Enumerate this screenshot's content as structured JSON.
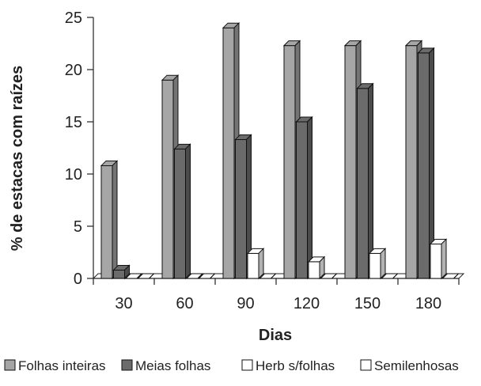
{
  "chart_data": {
    "type": "bar",
    "style": "3d-clustered",
    "title": "",
    "xlabel": "Dias",
    "ylabel": "% de estacas com raízes",
    "ylim": [
      0,
      25
    ],
    "yticks": [
      "0",
      "5",
      "10",
      "15",
      "20",
      "25"
    ],
    "categories": [
      "30",
      "60",
      "90",
      "120",
      "150",
      "180"
    ],
    "grid": false,
    "legend_position": "bottom",
    "series": [
      {
        "name": "Folhas inteiras",
        "color": "#a6a6a6",
        "values": [
          10.8,
          19.0,
          24.0,
          22.3,
          22.3,
          22.3
        ]
      },
      {
        "name": "Meias folhas",
        "color": "#6b6b6b",
        "values": [
          0.8,
          12.4,
          13.3,
          15.0,
          18.2,
          21.6
        ]
      },
      {
        "name": "Herb s/folhas",
        "color": "#ffffff",
        "values": [
          0,
          0,
          2.4,
          1.6,
          2.4,
          3.3
        ]
      },
      {
        "name": "Semilenhosas",
        "color": "#ffffff",
        "values": [
          0,
          0,
          0,
          0,
          0,
          0
        ]
      }
    ]
  }
}
